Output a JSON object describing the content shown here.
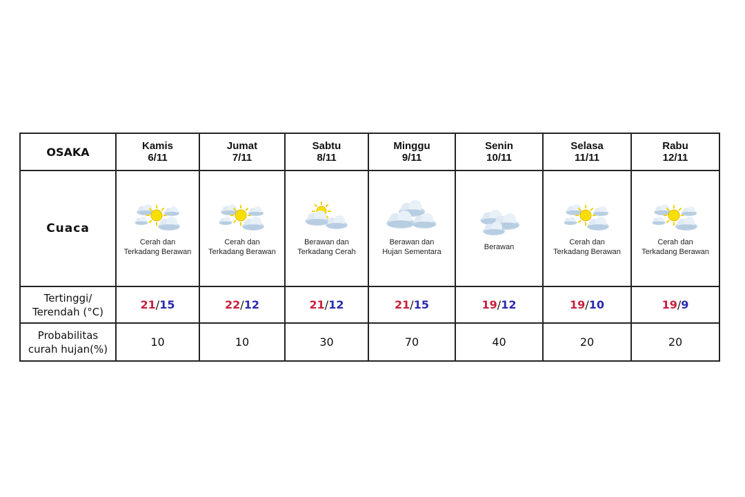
{
  "city": "OSAKA",
  "row_labels": {
    "weather": "Cuaca",
    "temp_line1": "Tertinggi/",
    "temp_line2": "Terendah (°C)",
    "prob_line1": "Probabilitas",
    "prob_line2": "curah hujan(%)"
  },
  "colors": {
    "high": "#c8203c",
    "low": "#2a2ab0"
  },
  "days": [
    {
      "day": "Kamis",
      "date": "6/11",
      "icon": "sun-cloud-icon",
      "desc1": "Cerah dan",
      "desc2": "Terkadang Berawan",
      "high": "21",
      "low": "15",
      "prob": "10"
    },
    {
      "day": "Jumat",
      "date": "7/11",
      "icon": "sun-cloud-icon",
      "desc1": "Cerah dan",
      "desc2": "Terkadang Berawan",
      "high": "22",
      "low": "12",
      "prob": "10"
    },
    {
      "day": "Sabtu",
      "date": "8/11",
      "icon": "cloud-sun-icon",
      "desc1": "Berawan dan",
      "desc2": "Terkadang Cerah",
      "high": "21",
      "low": "12",
      "prob": "30"
    },
    {
      "day": "Minggu",
      "date": "9/11",
      "icon": "cloud-rain-icon",
      "desc1": "Berawan dan",
      "desc2": "Hujan Sementara",
      "high": "21",
      "low": "15",
      "prob": "70"
    },
    {
      "day": "Senin",
      "date": "10/11",
      "icon": "cloud-icon",
      "desc1": "Berawan",
      "desc2": "",
      "high": "19",
      "low": "12",
      "prob": "40"
    },
    {
      "day": "Selasa",
      "date": "11/11",
      "icon": "sun-cloud-icon",
      "desc1": "Cerah dan",
      "desc2": "Terkadang Berawan",
      "high": "19",
      "low": "10",
      "prob": "20"
    },
    {
      "day": "Rabu",
      "date": "12/11",
      "icon": "sun-cloud-icon",
      "desc1": "Cerah dan",
      "desc2": "Terkadang Berawan",
      "high": "19",
      "low": "9",
      "prob": "20"
    }
  ]
}
